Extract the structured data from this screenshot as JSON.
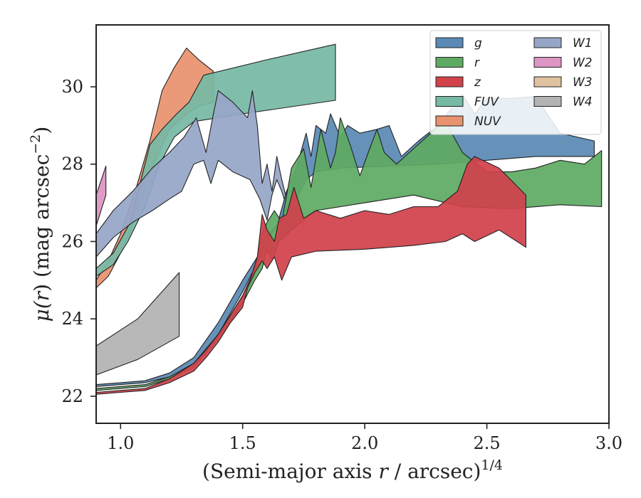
{
  "chart_data": {
    "type": "area",
    "xlabel_main": "(Semi-major axis ",
    "xlabel_var": "r",
    "xlabel_unit": " / arcsec)",
    "xlabel_exp": "1/4",
    "ylabel_mu": "μ(",
    "ylabel_var": "r",
    "ylabel_unit": ") (mag arcsec",
    "ylabel_exp": "−2",
    "ylabel_close": ")",
    "xlim": [
      0.9,
      3.0
    ],
    "ylim": [
      31.6,
      21.3
    ],
    "y_inverted": true,
    "xticks": [
      1.0,
      1.5,
      2.0,
      2.5,
      3.0
    ],
    "xtick_labels": [
      "1.0",
      "1.5",
      "2.0",
      "2.5",
      "3.0"
    ],
    "yticks": [
      22,
      24,
      26,
      28,
      30
    ],
    "ytick_labels": [
      "22",
      "24",
      "26",
      "28",
      "30"
    ],
    "grid": false,
    "legend_position": "top-right",
    "legend_columns": 2,
    "series": [
      {
        "name": "W4",
        "color": "#b3b3b3",
        "upper": [
          [
            0.9,
            22.55
          ],
          [
            1.07,
            22.95
          ],
          [
            1.24,
            23.55
          ]
        ],
        "lower": [
          [
            0.9,
            23.3
          ],
          [
            1.07,
            24.0
          ],
          [
            1.24,
            25.2
          ]
        ]
      },
      {
        "name": "W2",
        "color": "#dd95c3",
        "upper": [
          [
            0.9,
            26.4
          ],
          [
            0.94,
            27.2
          ]
        ],
        "lower": [
          [
            0.9,
            27.2
          ],
          [
            0.94,
            27.95
          ]
        ]
      },
      {
        "name": "NUV",
        "color": "#e8926f",
        "upper": [
          [
            0.9,
            24.8
          ],
          [
            0.95,
            25.1
          ],
          [
            1.0,
            25.7
          ],
          [
            1.06,
            26.6
          ],
          [
            1.12,
            27.8
          ],
          [
            1.2,
            28.9
          ],
          [
            1.27,
            29.3
          ],
          [
            1.32,
            29.5
          ],
          [
            1.38,
            29.6
          ]
        ],
        "lower": [
          [
            0.9,
            25.0
          ],
          [
            0.95,
            25.5
          ],
          [
            1.0,
            26.2
          ],
          [
            1.06,
            27.3
          ],
          [
            1.12,
            28.6
          ],
          [
            1.17,
            29.9
          ],
          [
            1.22,
            30.5
          ],
          [
            1.27,
            31.0
          ],
          [
            1.32,
            30.7
          ],
          [
            1.38,
            30.4
          ]
        ]
      },
      {
        "name": "FUV",
        "color": "#76b9a5",
        "upper": [
          [
            0.9,
            25.1
          ],
          [
            0.97,
            25.4
          ],
          [
            1.03,
            26.0
          ],
          [
            1.1,
            26.9
          ],
          [
            1.16,
            28.0
          ],
          [
            1.22,
            28.7
          ],
          [
            1.3,
            29.1
          ],
          [
            1.5,
            29.3
          ],
          [
            1.88,
            29.65
          ]
        ],
        "lower": [
          [
            0.9,
            25.3
          ],
          [
            0.97,
            25.7
          ],
          [
            1.04,
            26.5
          ],
          [
            1.08,
            27.5
          ],
          [
            1.12,
            28.5
          ],
          [
            1.17,
            28.9
          ],
          [
            1.23,
            29.3
          ],
          [
            1.28,
            29.6
          ],
          [
            1.34,
            30.3
          ],
          [
            1.6,
            30.7
          ],
          [
            1.88,
            31.1
          ]
        ]
      },
      {
        "name": "W1",
        "color": "#97a6c8",
        "upper": [
          [
            0.9,
            25.6
          ],
          [
            0.97,
            26.1
          ],
          [
            1.05,
            26.5
          ],
          [
            1.13,
            26.8
          ],
          [
            1.2,
            27.1
          ],
          [
            1.25,
            27.3
          ],
          [
            1.3,
            28.0
          ],
          [
            1.34,
            28.1
          ],
          [
            1.37,
            27.5
          ],
          [
            1.4,
            28.1
          ],
          [
            1.46,
            27.8
          ],
          [
            1.53,
            27.6
          ],
          [
            1.57,
            27.1
          ],
          [
            1.6,
            26.55
          ],
          [
            1.62,
            27.2
          ],
          [
            1.64,
            27.6
          ],
          [
            1.66,
            27.3
          ],
          [
            1.68,
            26.9
          ]
        ],
        "lower": [
          [
            0.9,
            26.2
          ],
          [
            0.97,
            26.8
          ],
          [
            1.05,
            27.3
          ],
          [
            1.13,
            27.9
          ],
          [
            1.2,
            28.3
          ],
          [
            1.26,
            28.7
          ],
          [
            1.31,
            29.2
          ],
          [
            1.35,
            28.3
          ],
          [
            1.38,
            29.3
          ],
          [
            1.4,
            29.9
          ],
          [
            1.46,
            29.6
          ],
          [
            1.52,
            29.2
          ],
          [
            1.54,
            29.9
          ],
          [
            1.56,
            29.0
          ],
          [
            1.58,
            27.5
          ],
          [
            1.6,
            28.0
          ],
          [
            1.62,
            27.3
          ],
          [
            1.64,
            28.2
          ],
          [
            1.66,
            27.6
          ],
          [
            1.68,
            27.1
          ]
        ]
      },
      {
        "name": "g",
        "color": "#5a8ab5",
        "upper": [
          [
            0.9,
            22.25
          ],
          [
            1.0,
            22.3
          ],
          [
            1.1,
            22.35
          ],
          [
            1.2,
            22.5
          ],
          [
            1.3,
            22.8
          ],
          [
            1.4,
            23.6
          ],
          [
            1.5,
            24.7
          ],
          [
            1.58,
            25.7
          ],
          [
            1.62,
            26.3
          ],
          [
            1.65,
            26.5
          ],
          [
            1.68,
            26.8
          ],
          [
            1.72,
            27.1
          ],
          [
            1.76,
            27.6
          ],
          [
            1.8,
            27.8
          ],
          [
            1.9,
            27.9
          ],
          [
            2.1,
            27.95
          ],
          [
            2.3,
            28.0
          ],
          [
            2.5,
            28.1
          ],
          [
            2.7,
            28.2
          ],
          [
            2.94,
            28.2
          ]
        ],
        "lower": [
          [
            0.9,
            22.3
          ],
          [
            1.0,
            22.35
          ],
          [
            1.1,
            22.4
          ],
          [
            1.2,
            22.6
          ],
          [
            1.3,
            23.0
          ],
          [
            1.4,
            23.9
          ],
          [
            1.5,
            25.0
          ],
          [
            1.56,
            25.6
          ],
          [
            1.6,
            26.0
          ],
          [
            1.64,
            26.4
          ],
          [
            1.68,
            27.3
          ],
          [
            1.72,
            27.9
          ],
          [
            1.76,
            28.8
          ],
          [
            1.78,
            28.2
          ],
          [
            1.8,
            29.0
          ],
          [
            1.84,
            28.8
          ],
          [
            1.86,
            29.3
          ],
          [
            1.9,
            28.7
          ],
          [
            1.93,
            29.0
          ],
          [
            1.98,
            28.8
          ],
          [
            2.05,
            28.9
          ],
          [
            2.1,
            29.0
          ],
          [
            2.15,
            28.2
          ],
          [
            2.22,
            28.6
          ],
          [
            2.3,
            29.0
          ],
          [
            2.4,
            29.8
          ],
          [
            2.45,
            29.3
          ],
          [
            2.5,
            29.7
          ],
          [
            2.6,
            29.7
          ],
          [
            2.7,
            29.75
          ],
          [
            2.8,
            28.8
          ],
          [
            2.94,
            28.6
          ]
        ]
      },
      {
        "name": "r",
        "color": "#5faa63",
        "upper": [
          [
            0.9,
            22.15
          ],
          [
            1.0,
            22.2
          ],
          [
            1.1,
            22.25
          ],
          [
            1.2,
            22.45
          ],
          [
            1.3,
            22.75
          ],
          [
            1.4,
            23.5
          ],
          [
            1.5,
            24.4
          ],
          [
            1.55,
            25.0
          ],
          [
            1.58,
            25.3
          ],
          [
            1.6,
            25.8
          ],
          [
            1.62,
            25.5
          ],
          [
            1.65,
            26.0
          ],
          [
            1.7,
            26.3
          ],
          [
            1.8,
            26.8
          ],
          [
            2.0,
            27.0
          ],
          [
            2.2,
            27.2
          ],
          [
            2.4,
            26.9
          ],
          [
            2.6,
            26.85
          ],
          [
            2.8,
            26.95
          ],
          [
            2.97,
            26.9
          ]
        ],
        "lower": [
          [
            0.9,
            22.2
          ],
          [
            1.0,
            22.25
          ],
          [
            1.1,
            22.3
          ],
          [
            1.2,
            22.5
          ],
          [
            1.3,
            22.85
          ],
          [
            1.4,
            23.6
          ],
          [
            1.5,
            24.6
          ],
          [
            1.55,
            25.3
          ],
          [
            1.58,
            26.2
          ],
          [
            1.6,
            26.5
          ],
          [
            1.63,
            26.8
          ],
          [
            1.66,
            26.5
          ],
          [
            1.7,
            27.9
          ],
          [
            1.75,
            28.4
          ],
          [
            1.78,
            27.4
          ],
          [
            1.82,
            28.9
          ],
          [
            1.86,
            27.9
          ],
          [
            1.88,
            28.3
          ],
          [
            1.9,
            29.2
          ],
          [
            1.94,
            28.5
          ],
          [
            1.98,
            27.7
          ],
          [
            2.02,
            28.4
          ],
          [
            2.05,
            28.9
          ],
          [
            2.08,
            28.3
          ],
          [
            2.13,
            28.0
          ],
          [
            2.2,
            28.4
          ],
          [
            2.27,
            28.8
          ],
          [
            2.33,
            29.1
          ],
          [
            2.4,
            28.3
          ],
          [
            2.5,
            27.8
          ],
          [
            2.6,
            27.8
          ],
          [
            2.7,
            27.9
          ],
          [
            2.8,
            28.1
          ],
          [
            2.9,
            28.0
          ],
          [
            2.97,
            28.35
          ]
        ]
      },
      {
        "name": "z",
        "color": "#d1424b",
        "upper": [
          [
            0.9,
            22.05
          ],
          [
            1.0,
            22.1
          ],
          [
            1.1,
            22.15
          ],
          [
            1.2,
            22.35
          ],
          [
            1.3,
            22.65
          ],
          [
            1.35,
            23.0
          ],
          [
            1.4,
            23.4
          ],
          [
            1.45,
            23.9
          ],
          [
            1.5,
            24.3
          ],
          [
            1.52,
            24.8
          ],
          [
            1.55,
            25.2
          ],
          [
            1.58,
            25.5
          ],
          [
            1.6,
            25.3
          ],
          [
            1.63,
            25.6
          ],
          [
            1.66,
            25.0
          ],
          [
            1.7,
            25.6
          ],
          [
            1.8,
            25.75
          ],
          [
            2.0,
            25.8
          ],
          [
            2.2,
            25.9
          ],
          [
            2.33,
            26.0
          ],
          [
            2.4,
            26.2
          ],
          [
            2.45,
            26.0
          ],
          [
            2.55,
            26.3
          ],
          [
            2.66,
            25.85
          ]
        ],
        "lower": [
          [
            0.9,
            22.1
          ],
          [
            1.0,
            22.15
          ],
          [
            1.1,
            22.2
          ],
          [
            1.2,
            22.45
          ],
          [
            1.3,
            22.85
          ],
          [
            1.35,
            23.2
          ],
          [
            1.4,
            23.6
          ],
          [
            1.45,
            24.1
          ],
          [
            1.5,
            24.6
          ],
          [
            1.53,
            25.0
          ],
          [
            1.56,
            25.6
          ],
          [
            1.58,
            26.7
          ],
          [
            1.6,
            26.3
          ],
          [
            1.63,
            26.0
          ],
          [
            1.65,
            26.6
          ],
          [
            1.68,
            26.7
          ],
          [
            1.71,
            27.4
          ],
          [
            1.75,
            26.6
          ],
          [
            1.8,
            26.8
          ],
          [
            1.9,
            26.6
          ],
          [
            2.0,
            26.8
          ],
          [
            2.1,
            26.7
          ],
          [
            2.2,
            26.9
          ],
          [
            2.3,
            26.9
          ],
          [
            2.38,
            27.3
          ],
          [
            2.42,
            28.0
          ],
          [
            2.45,
            28.2
          ],
          [
            2.55,
            27.9
          ],
          [
            2.66,
            27.2
          ]
        ]
      }
    ],
    "legend": {
      "col1": [
        {
          "label": "g",
          "color": "#5a8ab5"
        },
        {
          "label": "r",
          "color": "#5faa63"
        },
        {
          "label": "z",
          "color": "#d1424b"
        },
        {
          "label": "FUV",
          "color": "#76b9a5"
        },
        {
          "label": "NUV",
          "color": "#e8926f"
        }
      ],
      "col2": [
        {
          "label": "W1",
          "color": "#97a6c8"
        },
        {
          "label": "W2",
          "color": "#dd95c3"
        },
        {
          "label": "W3",
          "color": "#dfc29e"
        },
        {
          "label": "W4",
          "color": "#b3b3b3"
        }
      ]
    }
  }
}
